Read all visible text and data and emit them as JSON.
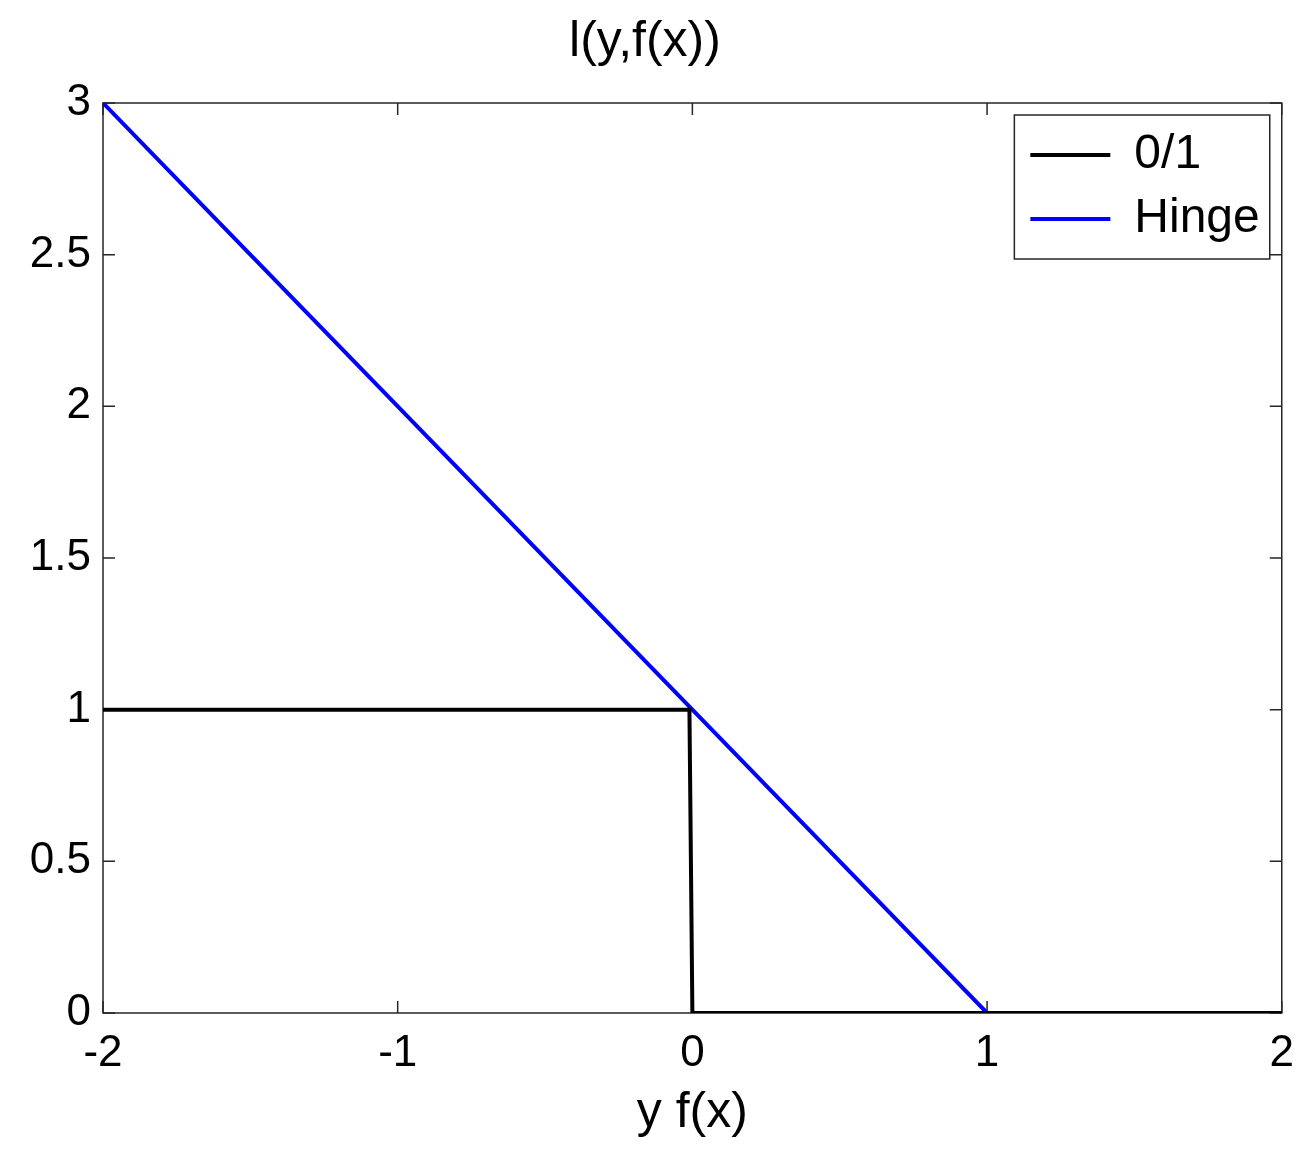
{
  "chart_data": {
    "type": "line",
    "title": "l(y,f(x))",
    "xlabel": "y f(x)",
    "series": [
      {
        "name": "0/1",
        "color": "#000000",
        "x": [
          -2,
          -0.01,
          0,
          2
        ],
        "values": [
          1,
          1,
          0,
          0
        ]
      },
      {
        "name": "Hinge",
        "color": "#0000ff",
        "x": [
          -2,
          1,
          2
        ],
        "values": [
          3,
          0,
          0
        ]
      }
    ],
    "xlim": [
      -2,
      2
    ],
    "ylim": [
      0,
      3
    ],
    "xticks": [
      -2,
      -1,
      0,
      1,
      2
    ],
    "yticks": [
      0,
      0.5,
      1,
      1.5,
      2,
      2.5,
      3
    ],
    "legend": "top right",
    "marker": "none",
    "line_style": "solid"
  }
}
